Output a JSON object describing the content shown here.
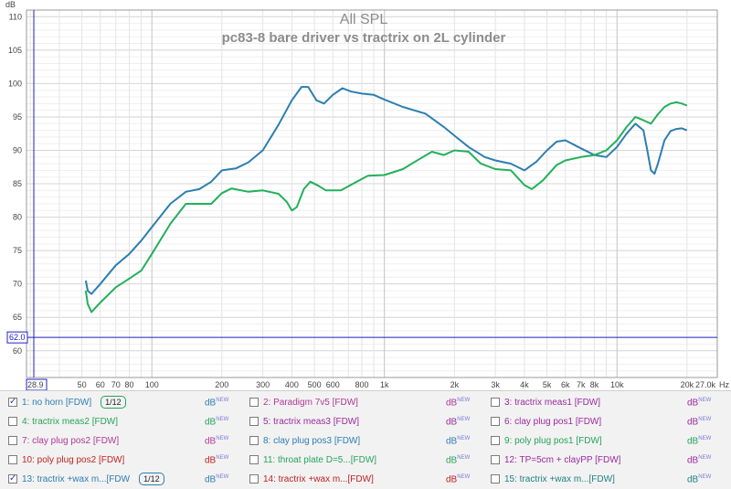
{
  "chart_data": {
    "type": "line",
    "title": "All SPL",
    "subtitle": "pc83-8 bare driver vs tractrix on 2L cylinder",
    "ylabel": "dB",
    "xlabel": "Hz",
    "xscale": "log",
    "xlim": [
      28.9,
      27000
    ],
    "ylim": [
      56,
      111
    ],
    "y_ticks": [
      60,
      65,
      70,
      75,
      80,
      85,
      90,
      95,
      100,
      105,
      110
    ],
    "x_tick_labels": [
      {
        "v": 28.9,
        "t": "28.9"
      },
      {
        "v": 50,
        "t": "50"
      },
      {
        "v": 60,
        "t": "60"
      },
      {
        "v": 70,
        "t": "70"
      },
      {
        "v": 80,
        "t": "80"
      },
      {
        "v": 100,
        "t": "100"
      },
      {
        "v": 200,
        "t": "200"
      },
      {
        "v": 300,
        "t": "300"
      },
      {
        "v": 400,
        "t": "400"
      },
      {
        "v": 500,
        "t": "500"
      },
      {
        "v": 600,
        "t": "600"
      },
      {
        "v": 800,
        "t": "800"
      },
      {
        "v": 1000,
        "t": "1k"
      },
      {
        "v": 2000,
        "t": "2k"
      },
      {
        "v": 3000,
        "t": "3k"
      },
      {
        "v": 4000,
        "t": "4k"
      },
      {
        "v": 5000,
        "t": "5k"
      },
      {
        "v": 6000,
        "t": "6k"
      },
      {
        "v": 7000,
        "t": "7k"
      },
      {
        "v": 8000,
        "t": "8k"
      },
      {
        "v": 10000,
        "t": "10k"
      },
      {
        "v": 20000,
        "t": "20k"
      },
      {
        "v": 27000,
        "t": "27.0k"
      }
    ],
    "reference_line": {
      "value": 62.0,
      "label": "62.0",
      "color": "#2020c0"
    },
    "series": [
      {
        "name": "1: no horn [FDW]",
        "color": "#2d7eb0",
        "points": [
          [
            52,
            70.5
          ],
          [
            53,
            69
          ],
          [
            55,
            68.5
          ],
          [
            60,
            70
          ],
          [
            70,
            72.8
          ],
          [
            80,
            74.5
          ],
          [
            90,
            76.5
          ],
          [
            100,
            78.5
          ],
          [
            120,
            82
          ],
          [
            140,
            83.8
          ],
          [
            160,
            84.2
          ],
          [
            180,
            85.3
          ],
          [
            200,
            87
          ],
          [
            230,
            87.3
          ],
          [
            260,
            88.2
          ],
          [
            300,
            90
          ],
          [
            350,
            93.8
          ],
          [
            400,
            97.5
          ],
          [
            440,
            99.5
          ],
          [
            470,
            99.5
          ],
          [
            510,
            97.5
          ],
          [
            550,
            97
          ],
          [
            600,
            98.3
          ],
          [
            660,
            99.3
          ],
          [
            720,
            98.8
          ],
          [
            800,
            98.5
          ],
          [
            900,
            98.3
          ],
          [
            1000,
            97.6
          ],
          [
            1200,
            96.5
          ],
          [
            1500,
            95.5
          ],
          [
            1800,
            93.5
          ],
          [
            2000,
            92.2
          ],
          [
            2300,
            90.5
          ],
          [
            2700,
            89
          ],
          [
            3000,
            88.5
          ],
          [
            3500,
            88
          ],
          [
            4000,
            87
          ],
          [
            4500,
            88.3
          ],
          [
            5000,
            90
          ],
          [
            5500,
            91.3
          ],
          [
            6000,
            91.5
          ],
          [
            7000,
            90.3
          ],
          [
            8000,
            89.3
          ],
          [
            9000,
            89
          ],
          [
            10000,
            90.5
          ],
          [
            11000,
            92.5
          ],
          [
            12000,
            94
          ],
          [
            13000,
            93
          ],
          [
            13500,
            90
          ],
          [
            14000,
            87
          ],
          [
            14500,
            86.5
          ],
          [
            15000,
            88
          ],
          [
            16000,
            91.5
          ],
          [
            17000,
            92.9
          ],
          [
            18000,
            93.2
          ],
          [
            19000,
            93.3
          ],
          [
            20000,
            93
          ]
        ]
      },
      {
        "name": "13: tractrix +wax m...[FDW",
        "color": "#23b05a",
        "points": [
          [
            52,
            69
          ],
          [
            53,
            67
          ],
          [
            55,
            65.8
          ],
          [
            60,
            67.2
          ],
          [
            70,
            69.5
          ],
          [
            80,
            70.8
          ],
          [
            90,
            72
          ],
          [
            100,
            74.5
          ],
          [
            120,
            79
          ],
          [
            140,
            82
          ],
          [
            160,
            82
          ],
          [
            180,
            82
          ],
          [
            200,
            83.6
          ],
          [
            220,
            84.3
          ],
          [
            260,
            83.8
          ],
          [
            300,
            84
          ],
          [
            350,
            83.5
          ],
          [
            380,
            82.3
          ],
          [
            400,
            81
          ],
          [
            420,
            81.5
          ],
          [
            450,
            84.2
          ],
          [
            480,
            85.3
          ],
          [
            520,
            84.7
          ],
          [
            560,
            84
          ],
          [
            650,
            84
          ],
          [
            750,
            85.2
          ],
          [
            850,
            86.2
          ],
          [
            1000,
            86.3
          ],
          [
            1200,
            87.2
          ],
          [
            1400,
            88.6
          ],
          [
            1600,
            89.8
          ],
          [
            1800,
            89.3
          ],
          [
            2000,
            90
          ],
          [
            2300,
            89.8
          ],
          [
            2600,
            88
          ],
          [
            3000,
            87.2
          ],
          [
            3500,
            87
          ],
          [
            4000,
            84.8
          ],
          [
            4300,
            84.2
          ],
          [
            4800,
            85.5
          ],
          [
            5500,
            87.8
          ],
          [
            6000,
            88.5
          ],
          [
            7000,
            89
          ],
          [
            8000,
            89.3
          ],
          [
            9000,
            90
          ],
          [
            10000,
            91.5
          ],
          [
            11000,
            93.5
          ],
          [
            12000,
            95
          ],
          [
            13000,
            94.5
          ],
          [
            14000,
            94
          ],
          [
            15000,
            95.4
          ],
          [
            16000,
            96.5
          ],
          [
            17000,
            97
          ],
          [
            18000,
            97.2
          ],
          [
            19000,
            97
          ],
          [
            20000,
            96.7
          ]
        ]
      }
    ]
  },
  "legend": {
    "unit_label": "dB",
    "unit_sup": "NEW",
    "items": [
      {
        "label": "1: no horn [FDW]",
        "color": "#2d7eb0",
        "checked": true,
        "octave": "1/12",
        "octave_color": "#23a65a",
        "col": 0,
        "row": 0
      },
      {
        "label": "2: Paradigm 7v5 [FDW]",
        "color": "#b03898",
        "checked": false,
        "col": 1,
        "row": 0
      },
      {
        "label": "3: tractrix meas1 [FDW]",
        "color": "#9a2aa0",
        "checked": false,
        "col": 2,
        "row": 0
      },
      {
        "label": "4: tractrix meas2 [FDW]",
        "color": "#25a45a",
        "checked": false,
        "col": 0,
        "row": 1
      },
      {
        "label": "5: tractrix meas3 [FDW]",
        "color": "#9a2aa0",
        "checked": false,
        "col": 1,
        "row": 1
      },
      {
        "label": "6: clay plug pos1 [FDW]",
        "color": "#9a2aa0",
        "checked": false,
        "col": 2,
        "row": 1
      },
      {
        "label": "7: clay plug pos2 [FDW]",
        "color": "#b03898",
        "checked": false,
        "col": 0,
        "row": 2
      },
      {
        "label": "8: clay plug pos3 [FDW]",
        "color": "#2d7eb0",
        "checked": false,
        "col": 1,
        "row": 2
      },
      {
        "label": "9: poly plug pos1 [FDW]",
        "color": "#25a45a",
        "checked": false,
        "col": 2,
        "row": 2
      },
      {
        "label": "10: poly plug pos2 [FDW]",
        "color": "#c02222",
        "checked": false,
        "col": 0,
        "row": 3
      },
      {
        "label": "11: throat plate D=5...[FDW]",
        "color": "#25a45a",
        "checked": false,
        "col": 1,
        "row": 3
      },
      {
        "label": "12: TP=5cm + clayPP [FDW]",
        "color": "#9a2aa0",
        "checked": false,
        "col": 2,
        "row": 3
      },
      {
        "label": "13: tractrix +wax m...[FDW",
        "color": "#2d7eb0",
        "checked": true,
        "octave": "1/12",
        "octave_color": "#2d7eb0",
        "col": 0,
        "row": 4
      },
      {
        "label": "14: tractrix +wax m...[FDW]",
        "color": "#c02222",
        "checked": false,
        "col": 1,
        "row": 4
      },
      {
        "label": "15: tractrix +wax m...[FDW]",
        "color": "#208080",
        "checked": false,
        "col": 2,
        "row": 4
      }
    ]
  }
}
